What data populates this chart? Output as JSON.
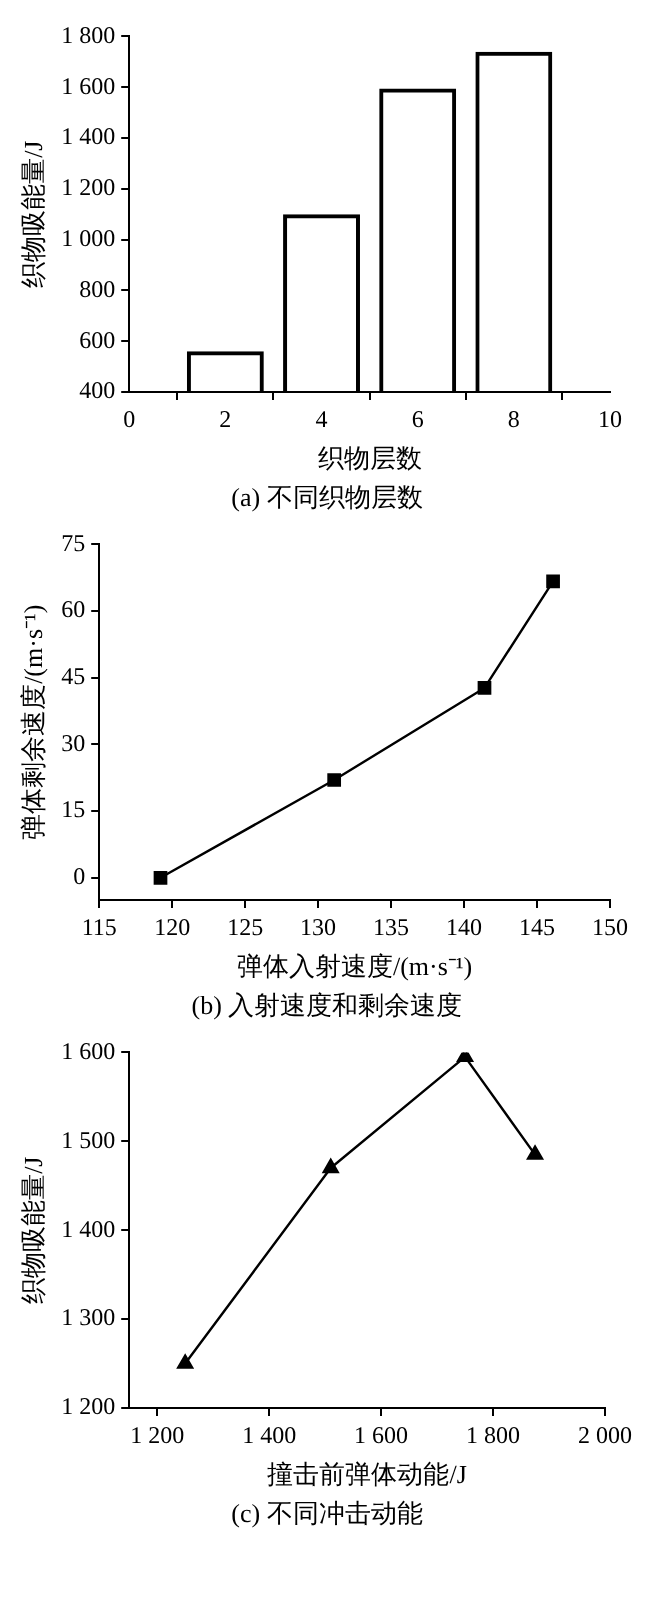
{
  "chart_data": [
    {
      "type": "bar",
      "x": [
        2,
        4,
        6,
        8
      ],
      "values": [
        560,
        1100,
        1595,
        1740
      ],
      "color": "#000000",
      "xlabel": "织物层数",
      "ylabel": "织物吸能量/J",
      "xlim": [
        0,
        10
      ],
      "xticks": [
        0,
        2,
        4,
        6,
        8,
        10
      ],
      "ylim": [
        400,
        1800
      ],
      "yticks": [
        400,
        600,
        800,
        {
          "value": 1000,
          "label": "1 000"
        },
        {
          "value": 1200,
          "label": "1 200"
        },
        {
          "value": 1400,
          "label": "1 400"
        },
        {
          "value": 1600,
          "label": "1 600"
        },
        {
          "value": 1800,
          "label": "1 800"
        }
      ],
      "grid": false,
      "legend": false,
      "annotations": [
        "(a) 不同织物层数"
      ]
    },
    {
      "type": "line",
      "x": [
        119.2,
        131.1,
        141.4,
        146.1
      ],
      "values": [
        0,
        22,
        42.7,
        66.7
      ],
      "color": "#000000",
      "marker": "square",
      "line_style": "solid",
      "xlabel": "弹体入射速度/(m·s⁻¹)",
      "ylabel": "弹体剩余速度/(m·s⁻¹)",
      "xlim": [
        115,
        150
      ],
      "xticks": [
        115,
        120,
        125,
        130,
        135,
        140,
        145,
        150
      ],
      "ylim": [
        -5,
        75
      ],
      "yticks": [
        0,
        15,
        30,
        45,
        60,
        75
      ],
      "grid": false,
      "legend": false,
      "annotations": [
        "(b) 入射速度和剩余速度"
      ]
    },
    {
      "type": "line",
      "x": [
        1250,
        1510,
        1750,
        1875
      ],
      "values": [
        1250,
        1470,
        1595,
        1485
      ],
      "color": "#000000",
      "marker": "triangle",
      "line_style": "solid",
      "xlabel": "撞击前弹体动能/J",
      "ylabel": "织物吸能量/J",
      "xlim": [
        1150,
        2000
      ],
      "xticks": [
        {
          "value": 1200,
          "label": "1 200"
        },
        {
          "value": 1400,
          "label": "1 400"
        },
        {
          "value": 1600,
          "label": "1 600"
        },
        {
          "value": 1800,
          "label": "1 800"
        },
        {
          "value": 2000,
          "label": "2 000"
        }
      ],
      "ylim": [
        1200,
        1600
      ],
      "yticks": [
        {
          "value": 1200,
          "label": "1 200"
        },
        {
          "value": 1300,
          "label": "1 300"
        },
        {
          "value": 1400,
          "label": "1 400"
        },
        {
          "value": 1500,
          "label": "1 500"
        },
        {
          "value": 1600,
          "label": "1 600"
        }
      ],
      "grid": false,
      "legend": false,
      "annotations": [
        "(c) 不同冲击动能"
      ]
    }
  ]
}
